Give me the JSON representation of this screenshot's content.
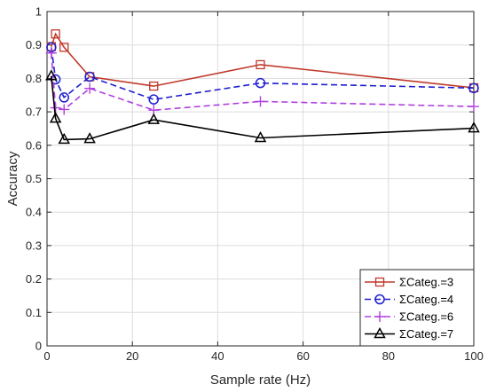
{
  "chart_data": {
    "type": "line",
    "title": "",
    "xlabel": "Sample rate (Hz)",
    "ylabel": "Accuracy",
    "xlim": [
      0,
      100
    ],
    "ylim": [
      0,
      1
    ],
    "xticks": [
      "0",
      "20",
      "40",
      "60",
      "80",
      "100"
    ],
    "yticks": [
      "0",
      "0.1",
      "0.2",
      "0.3",
      "0.4",
      "0.5",
      "0.6",
      "0.7",
      "0.8",
      "0.9",
      "1"
    ],
    "grid": true,
    "legend_position": "bottom-right",
    "series": [
      {
        "name": "ΣCateg.=3",
        "color": "#c0392b",
        "line_style": "solid",
        "marker": "square",
        "x": [
          1,
          2,
          4,
          10,
          25,
          50,
          100
        ],
        "y": [
          0.895,
          0.933,
          0.893,
          0.805,
          0.777,
          0.841,
          0.772
        ]
      },
      {
        "name": "ΣCateg.=4",
        "color": "#1f1fd1",
        "line_style": "dashed",
        "marker": "circle",
        "x": [
          1,
          2,
          4,
          10,
          25,
          50,
          100
        ],
        "y": [
          0.893,
          0.797,
          0.743,
          0.805,
          0.737,
          0.786,
          0.771
        ]
      },
      {
        "name": "ΣCateg.=6",
        "color": "#b040e0",
        "line_style": "dashed",
        "marker": "plus",
        "x": [
          1,
          2,
          4,
          10,
          25,
          50,
          100
        ],
        "y": [
          0.876,
          0.712,
          0.707,
          0.77,
          0.705,
          0.731,
          0.716
        ]
      },
      {
        "name": "ΣCateg.=7",
        "color": "#000000",
        "line_style": "solid",
        "marker": "triangle",
        "x": [
          1,
          2,
          4,
          10,
          25,
          50,
          100
        ],
        "y": [
          0.807,
          0.68,
          0.617,
          0.619,
          0.676,
          0.622,
          0.651
        ]
      }
    ]
  }
}
